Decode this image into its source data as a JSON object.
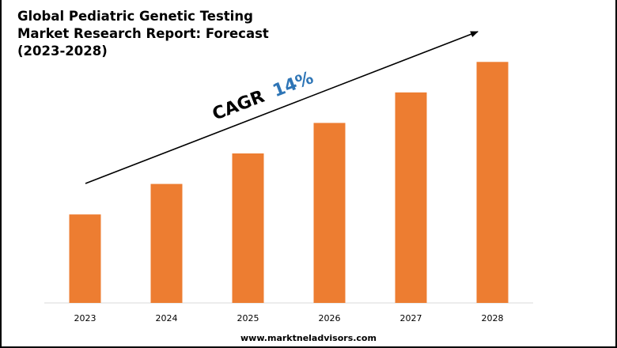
{
  "title_lines": [
    "Global Pediatric Genetic Testing",
    "Market Research Report: Forecast",
    "(2023-2028)"
  ],
  "annotation": {
    "prefix": "CAGR",
    "value": "14%"
  },
  "footer": "www.marktneladvisors.com",
  "colors": {
    "bar": "#ED7D31",
    "cagr_value": "#2E75B6",
    "text": "#000000",
    "axis": "#D9D9D9"
  },
  "chart_data": {
    "type": "bar",
    "categories": [
      "2023",
      "2024",
      "2025",
      "2026",
      "2027",
      "2028"
    ],
    "values": [
      29,
      39,
      49,
      59,
      69,
      79
    ],
    "ylim": [
      0,
      84
    ],
    "title": "Global Pediatric Genetic Testing Market Research Report: Forecast (2023-2028)",
    "xlabel": "",
    "ylabel": "",
    "grid": false,
    "legend": "none",
    "annotation": "CAGR 14%"
  }
}
